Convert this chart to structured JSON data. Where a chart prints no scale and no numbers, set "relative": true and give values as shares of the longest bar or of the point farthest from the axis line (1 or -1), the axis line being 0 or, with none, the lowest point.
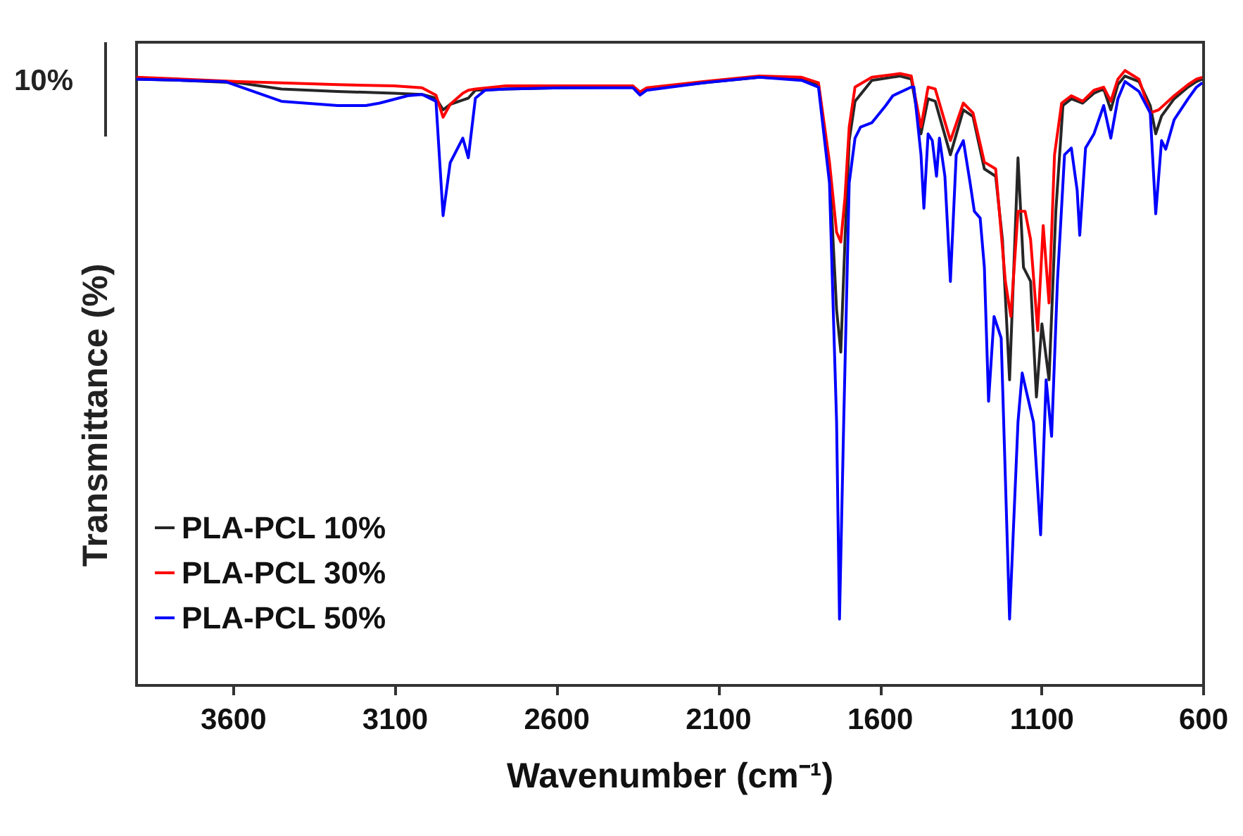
{
  "chart_data": {
    "type": "line",
    "relative": true,
    "xlabel": "Wavenumber (cm⁻¹)",
    "ylabel": "Transmittance (%)",
    "annotations": [
      "10%"
    ],
    "xlim": [
      3900,
      600
    ],
    "xticks": [
      3600,
      3100,
      2600,
      2100,
      1600,
      1100,
      600
    ],
    "grid": false,
    "legend": "bottom left",
    "series": [
      {
        "name": "PLA-PCL 10%",
        "color": "#262626",
        "x": [
          3900,
          3757,
          3583,
          3452,
          3278,
          3104,
          3017,
          2974,
          2952,
          2930,
          2891,
          2874,
          2852,
          2757,
          2583,
          2365,
          2343,
          2322,
          2148,
          1974,
          1843,
          1791,
          1757,
          1735,
          1722,
          1709,
          1696,
          1678,
          1626,
          1539,
          1504,
          1474,
          1452,
          1430,
          1383,
          1343,
          1313,
          1278,
          1243,
          1222,
          1200,
          1174,
          1157,
          1135,
          1117,
          1100,
          1078,
          1057,
          1035,
          1009,
          974,
          939,
          909,
          887,
          865,
          843,
          800,
          765,
          748,
          730,
          691,
          648,
          622,
          604
        ],
        "values": [
          0.986,
          0.984,
          0.98,
          0.97,
          0.966,
          0.963,
          0.961,
          0.955,
          0.936,
          0.945,
          0.952,
          0.955,
          0.968,
          0.97,
          0.972,
          0.973,
          0.963,
          0.97,
          0.98,
          0.989,
          0.986,
          0.977,
          0.84,
          0.611,
          0.542,
          0.725,
          0.886,
          0.95,
          0.984,
          0.991,
          0.986,
          0.897,
          0.954,
          0.95,
          0.863,
          0.936,
          0.925,
          0.84,
          0.828,
          0.725,
          0.497,
          0.858,
          0.68,
          0.657,
          0.469,
          0.588,
          0.497,
          0.771,
          0.943,
          0.954,
          0.947,
          0.963,
          0.97,
          0.936,
          0.977,
          0.991,
          0.982,
          0.943,
          0.897,
          0.926,
          0.954,
          0.973,
          0.982,
          0.986
        ]
      },
      {
        "name": "PLA-PCL 30%",
        "color": "#ff0000",
        "x": [
          3900,
          3757,
          3583,
          3452,
          3278,
          3104,
          3017,
          2974,
          2952,
          2930,
          2891,
          2874,
          2852,
          2757,
          2583,
          2365,
          2343,
          2322,
          2148,
          1974,
          1843,
          1791,
          1757,
          1735,
          1722,
          1709,
          1696,
          1678,
          1626,
          1539,
          1504,
          1474,
          1452,
          1430,
          1383,
          1343,
          1313,
          1278,
          1243,
          1213,
          1196,
          1174,
          1152,
          1135,
          1113,
          1096,
          1078,
          1061,
          1039,
          1009,
          974,
          939,
          909,
          887,
          865,
          843,
          800,
          765,
          739,
          691,
          648,
          622,
          604
        ],
        "values": [
          0.989,
          0.986,
          0.982,
          0.98,
          0.977,
          0.975,
          0.972,
          0.96,
          0.924,
          0.945,
          0.963,
          0.968,
          0.97,
          0.975,
          0.975,
          0.975,
          0.965,
          0.972,
          0.982,
          0.991,
          0.989,
          0.98,
          0.851,
          0.737,
          0.721,
          0.794,
          0.908,
          0.973,
          0.989,
          0.995,
          0.991,
          0.908,
          0.973,
          0.97,
          0.886,
          0.947,
          0.931,
          0.851,
          0.84,
          0.657,
          0.6,
          0.771,
          0.771,
          0.725,
          0.577,
          0.748,
          0.622,
          0.863,
          0.947,
          0.959,
          0.95,
          0.968,
          0.973,
          0.95,
          0.986,
          1.0,
          0.986,
          0.931,
          0.936,
          0.959,
          0.977,
          0.986,
          0.989
        ]
      },
      {
        "name": "PLA-PCL 50%",
        "color": "#0000ff",
        "x": [
          3900,
          3757,
          3626,
          3452,
          3278,
          3191,
          3148,
          3061,
          3017,
          2974,
          2952,
          2930,
          2891,
          2874,
          2852,
          2822,
          2757,
          2583,
          2365,
          2343,
          2322,
          2148,
          1974,
          1843,
          1791,
          1757,
          1735,
          1726,
          1713,
          1696,
          1678,
          1661,
          1626,
          1583,
          1561,
          1504,
          1496,
          1474,
          1465,
          1452,
          1439,
          1426,
          1417,
          1400,
          1383,
          1365,
          1343,
          1322,
          1309,
          1291,
          1278,
          1265,
          1248,
          1226,
          1200,
          1174,
          1161,
          1148,
          1126,
          1104,
          1087,
          1070,
          1052,
          1030,
          1009,
          991,
          983,
          965,
          939,
          909,
          887,
          865,
          843,
          800,
          765,
          748,
          730,
          717,
          691,
          648,
          622,
          604
        ],
        "values": [
          0.986,
          0.984,
          0.982,
          0.95,
          0.943,
          0.943,
          0.947,
          0.959,
          0.961,
          0.95,
          0.764,
          0.85,
          0.89,
          0.858,
          0.955,
          0.968,
          0.97,
          0.972,
          0.972,
          0.96,
          0.968,
          0.98,
          0.989,
          0.984,
          0.973,
          0.817,
          0.428,
          0.108,
          0.428,
          0.817,
          0.89,
          0.908,
          0.915,
          0.943,
          0.959,
          0.973,
          0.973,
          0.863,
          0.776,
          0.897,
          0.886,
          0.828,
          0.89,
          0.828,
          0.657,
          0.863,
          0.886,
          0.817,
          0.771,
          0.76,
          0.68,
          0.462,
          0.6,
          0.565,
          0.108,
          0.428,
          0.508,
          0.478,
          0.428,
          0.245,
          0.497,
          0.405,
          0.657,
          0.863,
          0.874,
          0.805,
          0.732,
          0.874,
          0.897,
          0.943,
          0.89,
          0.954,
          0.982,
          0.966,
          0.931,
          0.767,
          0.886,
          0.872,
          0.92,
          0.954,
          0.973,
          0.98
        ]
      }
    ]
  }
}
